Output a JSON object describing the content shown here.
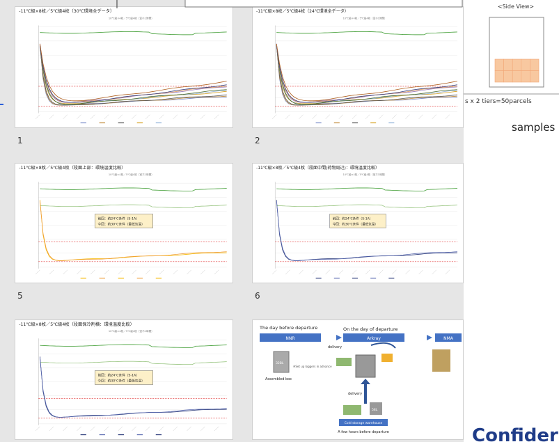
{
  "slides": [
    {
      "number": "1",
      "title": "-11℃級×8枚／5℃級4枚（30℃環境全データ）",
      "subtitle": "10℃級×4枚／5℃級4枚（室ホ1時間）"
    },
    {
      "number": "2",
      "title": "-11℃級×8枚／5℃級4枚（24℃環境全データ）",
      "subtitle": "10℃級×4枚／5℃級4枚（室ホ1時間）"
    },
    {
      "number": "5",
      "title": "-11℃級×8枚／5℃級4枚（段面上部：環境温度比較）",
      "subtitle": "10℃級×4枚／5℃級4枚（室ホ1時間）",
      "note": [
        "前回：約24℃条件（S-1A）",
        "今回：約30℃条件（最低気温）"
      ]
    },
    {
      "number": "6",
      "title": "-11℃級×8枚／5℃級4枚（段面中間(荷物周辺)：環境温度比較）",
      "subtitle": "10℃級×4枚／5℃級4枚（室ホ1時間）",
      "note": [
        "前回：約24℃条件（S-1A）",
        "今回：約30℃条件（最低気温）"
      ]
    },
    {
      "title": "-11℃級×8枚／5℃級4枚（段面保冷剤横：環境温度比較）",
      "subtitle": "10℃級×4枚／5℃級4枚（室ホ1時間）",
      "note": [
        "前回：約24℃条件（S-1A）",
        "今回：約30℃条件（最低気温）"
      ]
    }
  ],
  "diagram": {
    "day_before": "The day before departure",
    "day_of": "On the day of departure",
    "nodes": [
      "NNR",
      "Arkray",
      "NMA"
    ],
    "delivery": "delivery",
    "box": "32BL",
    "box_caption": "Assembled box",
    "logger_note": "※Set up loggers in advance",
    "delivery_up": "delivery",
    "small_box": "58L",
    "warehouse": "Cold storage warehouse",
    "warehouse_note": "A few hours before departure"
  },
  "side_panel": {
    "heading": "<Side View>",
    "caption": "s x 2 tiers=50parcels",
    "label": "samples"
  },
  "footer": "Confider"
}
